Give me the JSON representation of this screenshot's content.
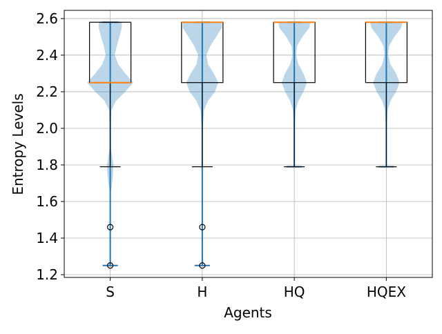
{
  "chart_data": {
    "type": "violin+box",
    "title": "",
    "xlabel": "Agents",
    "ylabel": "Entropy Levels",
    "categories": [
      "S",
      "H",
      "HQ",
      "HQEX"
    ],
    "ylim": [
      1.185,
      2.645
    ],
    "yticks": [
      1.2,
      1.4,
      1.6,
      1.8,
      2.0,
      2.2,
      2.4,
      2.6
    ],
    "ytick_labels": [
      "1.2",
      "1.4",
      "1.6",
      "1.8",
      "2.0",
      "2.2",
      "2.4",
      "2.6"
    ],
    "grid": true,
    "colors": {
      "violin": "#1f77b4",
      "median": "#ff7f0e",
      "grid": "#b0b0b0",
      "box": "#000000"
    },
    "boxes": [
      {
        "q1": 2.25,
        "median": 2.25,
        "q3": 2.58,
        "whisker_low": 1.79,
        "whisker_high": 2.58,
        "fliers": [
          1.46,
          1.25
        ]
      },
      {
        "q1": 2.25,
        "median": 2.58,
        "q3": 2.58,
        "whisker_low": 1.79,
        "whisker_high": 2.58,
        "fliers": [
          1.46,
          1.25
        ]
      },
      {
        "q1": 2.25,
        "median": 2.58,
        "q3": 2.58,
        "whisker_low": 1.79,
        "whisker_high": 2.58,
        "fliers": []
      },
      {
        "q1": 2.25,
        "median": 2.58,
        "q3": 2.58,
        "whisker_low": 1.79,
        "whisker_high": 2.58,
        "fliers": []
      }
    ],
    "violins": [
      {
        "min": 1.25,
        "max": 2.58,
        "density": [
          [
            1.25,
            0.04
          ],
          [
            1.3,
            0.01
          ],
          [
            1.45,
            0.01
          ],
          [
            1.55,
            0.01
          ],
          [
            1.65,
            0.02
          ],
          [
            1.7,
            0.08
          ],
          [
            1.75,
            0.12
          ],
          [
            1.8,
            0.14
          ],
          [
            1.85,
            0.08
          ],
          [
            1.9,
            0.02
          ],
          [
            2.0,
            0.02
          ],
          [
            2.1,
            0.05
          ],
          [
            2.15,
            0.25
          ],
          [
            2.2,
            0.65
          ],
          [
            2.25,
            1.0
          ],
          [
            2.3,
            0.65
          ],
          [
            2.35,
            0.35
          ],
          [
            2.4,
            0.2
          ],
          [
            2.45,
            0.28
          ],
          [
            2.5,
            0.4
          ],
          [
            2.55,
            0.5
          ],
          [
            2.58,
            0.5
          ]
        ]
      },
      {
        "min": 1.25,
        "max": 2.58,
        "density": [
          [
            1.25,
            0.03
          ],
          [
            1.4,
            0.01
          ],
          [
            1.6,
            0.01
          ],
          [
            1.8,
            0.02
          ],
          [
            2.0,
            0.02
          ],
          [
            2.1,
            0.08
          ],
          [
            2.15,
            0.25
          ],
          [
            2.2,
            0.55
          ],
          [
            2.25,
            0.7
          ],
          [
            2.3,
            0.5
          ],
          [
            2.35,
            0.25
          ],
          [
            2.4,
            0.18
          ],
          [
            2.45,
            0.35
          ],
          [
            2.5,
            0.6
          ],
          [
            2.55,
            0.85
          ],
          [
            2.58,
            0.85
          ]
        ]
      },
      {
        "min": 1.79,
        "max": 2.58,
        "density": [
          [
            1.79,
            0.02
          ],
          [
            1.9,
            0.02
          ],
          [
            2.0,
            0.02
          ],
          [
            2.1,
            0.06
          ],
          [
            2.15,
            0.18
          ],
          [
            2.2,
            0.4
          ],
          [
            2.25,
            0.55
          ],
          [
            2.3,
            0.4
          ],
          [
            2.35,
            0.18
          ],
          [
            2.4,
            0.08
          ],
          [
            2.45,
            0.12
          ],
          [
            2.5,
            0.35
          ],
          [
            2.55,
            0.65
          ],
          [
            2.58,
            0.7
          ]
        ]
      },
      {
        "min": 1.79,
        "max": 2.58,
        "density": [
          [
            1.79,
            0.02
          ],
          [
            1.9,
            0.02
          ],
          [
            2.0,
            0.02
          ],
          [
            2.1,
            0.06
          ],
          [
            2.15,
            0.18
          ],
          [
            2.2,
            0.42
          ],
          [
            2.25,
            0.58
          ],
          [
            2.3,
            0.42
          ],
          [
            2.35,
            0.18
          ],
          [
            2.4,
            0.08
          ],
          [
            2.45,
            0.12
          ],
          [
            2.5,
            0.35
          ],
          [
            2.55,
            0.65
          ],
          [
            2.58,
            0.7
          ]
        ]
      }
    ]
  }
}
